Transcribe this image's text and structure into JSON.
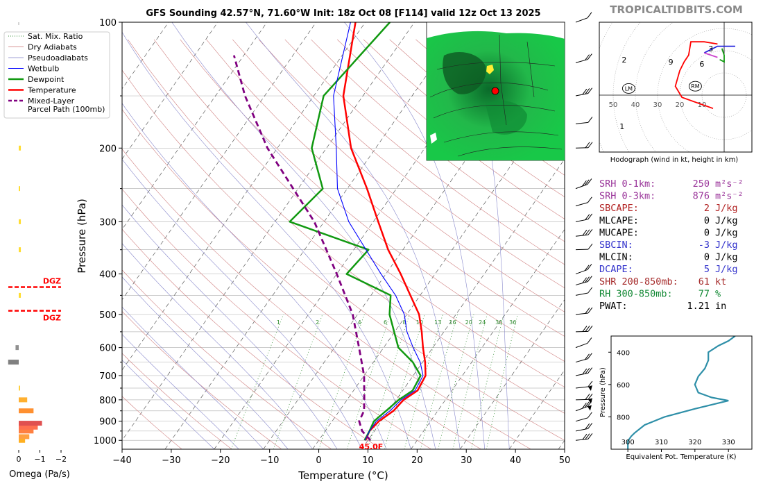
{
  "title": "GFS Sounding 42.57°N, 71.60°W Init: 18z Oct 08 [F114] valid 12z Oct 13 2025",
  "brand": "TROPICALTIDBITS.COM",
  "legend": [
    {
      "label": "Sat. Mix. Ratio",
      "color": "#2e8b2e",
      "style": "dotted"
    },
    {
      "label": "Dry Adiabats",
      "color": "#c87070",
      "style": "solid-thin"
    },
    {
      "label": "Pseudoadiabats",
      "color": "#7f7fc8",
      "style": "solid-thin"
    },
    {
      "label": "Wetbulb",
      "color": "#0000ff",
      "style": "solid"
    },
    {
      "label": "Dewpoint",
      "color": "#119911",
      "style": "solid-thick"
    },
    {
      "label": "Temperature",
      "color": "#ff0000",
      "style": "solid-thick"
    },
    {
      "label": "Mixed-Layer",
      "color": "#800080",
      "style": "dashed"
    },
    {
      "label": "Parcel Path (100mb)",
      "color": "#800080",
      "style": "none"
    }
  ],
  "skewt": {
    "xlabel": "Temperature (°C)",
    "ylabel": "Pressure (hPa)",
    "x_ticks": [
      -40,
      -30,
      -20,
      -10,
      0,
      10,
      20,
      30,
      40,
      50
    ],
    "y_ticks": [
      100,
      200,
      300,
      400,
      500,
      600,
      700,
      800,
      900,
      1000
    ],
    "mix_ratio_labels": [
      "1",
      "2",
      "4",
      "6",
      "8",
      "10",
      "13",
      "16",
      "20",
      "24",
      "30",
      "36"
    ],
    "surface_label": "45.0F"
  },
  "omega": {
    "xlabel": "Omega (Pa/s)",
    "x_ticks": [
      "0",
      "−1",
      "−2"
    ],
    "dgz_label": "DGZ"
  },
  "hodograph": {
    "caption": "Hodograph (wind in kt, height in km)",
    "ring_labels": [
      "50",
      "40",
      "30",
      "20",
      "10"
    ],
    "height_labels": [
      "1",
      "2",
      "3",
      "6",
      "9"
    ],
    "lm": "LM",
    "rm": "RM"
  },
  "indices": [
    {
      "label": "SRH 0-1km:",
      "value": "250",
      "unit": "m²s⁻²",
      "color": "#993399"
    },
    {
      "label": "SRH 0-3km:",
      "value": "876",
      "unit": "m²s⁻²",
      "color": "#993399"
    },
    {
      "label": "SBCAPE:",
      "value": "2",
      "unit": "J/kg",
      "color": "#b22222"
    },
    {
      "label": "MLCAPE:",
      "value": "0",
      "unit": "J/kg",
      "color": "#000000"
    },
    {
      "label": "MUCAPE:",
      "value": "0",
      "unit": "J/kg",
      "color": "#000000"
    },
    {
      "label": "SBCIN:",
      "value": "-3",
      "unit": "J/kg",
      "color": "#3333cc"
    },
    {
      "label": "MLCIN:",
      "value": "0",
      "unit": "J/kg",
      "color": "#000000"
    },
    {
      "label": "DCAPE:",
      "value": "5",
      "unit": "J/kg",
      "color": "#3333cc"
    },
    {
      "label": "SHR 200-850mb:",
      "value": "61",
      "unit": "kt",
      "color": "#a52a2a"
    },
    {
      "label": "RH 300-850mb:",
      "value": "77",
      "unit": "%",
      "color": "#118833"
    },
    {
      "label": "PWAT:",
      "value": "1.21",
      "unit": "in",
      "color": "#000000"
    }
  ],
  "theta_e": {
    "xlabel": "Equivalent Pot. Temperature (K)",
    "ylabel": "Pressure (hPa)",
    "x_ticks": [
      300,
      310,
      320,
      330
    ],
    "y_ticks": [
      400,
      600,
      800
    ]
  },
  "chart_data": [
    {
      "type": "line",
      "name_ref": "skewt",
      "x_range": [
        -40,
        50
      ],
      "y_range_hpa": [
        1050,
        100
      ],
      "y_scale": "log",
      "series": [
        {
          "name": "Temperature",
          "color": "#ff0000",
          "points": [
            [
              1000,
              9.5
            ],
            [
              950,
              9.0
            ],
            [
              900,
              9.5
            ],
            [
              850,
              11
            ],
            [
              800,
              11.5
            ],
            [
              760,
              13
            ],
            [
              700,
              12.5
            ],
            [
              650,
              10.5
            ],
            [
              600,
              8
            ],
            [
              550,
              5.5
            ],
            [
              500,
              2.5
            ],
            [
              450,
              -2
            ],
            [
              400,
              -7
            ],
            [
              350,
              -13
            ],
            [
              300,
              -19
            ],
            [
              250,
              -26
            ],
            [
              200,
              -35
            ],
            [
              150,
              -44
            ],
            [
              100,
              -52
            ]
          ]
        },
        {
          "name": "Dewpoint",
          "color": "#119911",
          "points": [
            [
              1000,
              9.3
            ],
            [
              950,
              9.0
            ],
            [
              900,
              8.5
            ],
            [
              850,
              9.5
            ],
            [
              800,
              10.5
            ],
            [
              760,
              12
            ],
            [
              700,
              11.5
            ],
            [
              650,
              8
            ],
            [
              600,
              3
            ],
            [
              500,
              -3.5
            ],
            [
              450,
              -6
            ],
            [
              400,
              -18
            ],
            [
              350,
              -17
            ],
            [
              300,
              -37
            ],
            [
              250,
              -35
            ],
            [
              200,
              -43
            ],
            [
              150,
              -48
            ],
            [
              100,
              -45
            ]
          ]
        },
        {
          "name": "Wetbulb",
          "color": "#0000ff",
          "points": [
            [
              1000,
              9.4
            ],
            [
              950,
              9.0
            ],
            [
              900,
              9.0
            ],
            [
              850,
              10.3
            ],
            [
              800,
              11
            ],
            [
              760,
              12.5
            ],
            [
              700,
              12
            ],
            [
              650,
              9.5
            ],
            [
              600,
              6
            ],
            [
              550,
              2.5
            ],
            [
              500,
              -0.5
            ],
            [
              450,
              -5
            ],
            [
              400,
              -11
            ],
            [
              350,
              -17.5
            ],
            [
              300,
              -25
            ],
            [
              250,
              -32
            ],
            [
              200,
              -38
            ],
            [
              150,
              -46
            ],
            [
              100,
              -53
            ]
          ]
        },
        {
          "name": "Mixed-Layer Parcel Path (100mb)",
          "color": "#800080",
          "points": [
            [
              1000,
              10.5
            ],
            [
              950,
              7.5
            ],
            [
              900,
              5.5
            ],
            [
              850,
              5
            ],
            [
              800,
              3.5
            ],
            [
              700,
              0
            ],
            [
              600,
              -5
            ],
            [
              500,
              -11
            ],
            [
              400,
              -20
            ],
            [
              300,
              -32
            ],
            [
              250,
              -41
            ],
            [
              200,
              -52
            ],
            [
              150,
              -64
            ],
            [
              120,
              -72
            ]
          ]
        }
      ]
    },
    {
      "type": "bar",
      "name_ref": "omega",
      "x_range": [
        0,
        -2
      ],
      "bars": [
        {
          "p": 1000,
          "v": -0.3,
          "c": "#ffb020"
        },
        {
          "p": 980,
          "v": -0.5,
          "c": "#ffa040"
        },
        {
          "p": 950,
          "v": -0.7,
          "c": "#ff8040"
        },
        {
          "p": 930,
          "v": -0.9,
          "c": "#ff7050"
        },
        {
          "p": 910,
          "v": -1.1,
          "c": "#e05050"
        },
        {
          "p": 850,
          "v": -0.7,
          "c": "#ff9030"
        },
        {
          "p": 800,
          "v": -0.4,
          "c": "#ffb030"
        },
        {
          "p": 750,
          "v": -0.05,
          "c": "#ffd040"
        },
        {
          "p": 650,
          "v": 0.5,
          "c": "#808080"
        },
        {
          "p": 600,
          "v": 0.15,
          "c": "#909090"
        },
        {
          "p": 450,
          "v": -0.1,
          "c": "#ffdd33"
        },
        {
          "p": 350,
          "v": -0.1,
          "c": "#ffdd33"
        },
        {
          "p": 300,
          "v": -0.1,
          "c": "#ffdd33"
        },
        {
          "p": 250,
          "v": -0.05,
          "c": "#ffdd33"
        },
        {
          "p": 200,
          "v": -0.1,
          "c": "#ffdd33"
        }
      ],
      "dgz_pressures": [
        430,
        490
      ]
    },
    {
      "type": "line",
      "name_ref": "hodograph",
      "segments": [
        {
          "color": "#ff0000",
          "points": [
            [
              -5,
              -6
            ],
            [
              -19,
              -1
            ],
            [
              -22,
              4
            ],
            [
              -20,
              11
            ],
            [
              -18,
              15
            ],
            [
              -16,
              18
            ],
            [
              -15,
              24
            ],
            [
              -9,
              24
            ],
            [
              -3,
              23
            ]
          ]
        },
        {
          "color": "#2222dd",
          "points": [
            [
              -9,
              19
            ],
            [
              -3,
              22
            ],
            [
              5,
              22
            ]
          ]
        },
        {
          "color": "#119911",
          "points": [
            [
              -1,
              21
            ],
            [
              0,
              18
            ],
            [
              0,
              15
            ],
            [
              -2,
              16
            ]
          ]
        },
        {
          "color": "#cc44cc",
          "points": [
            [
              -9,
              19
            ],
            [
              -6,
              18
            ],
            [
              -3,
              17
            ]
          ]
        }
      ],
      "range_kt": [
        -55,
        12
      ]
    },
    {
      "type": "line",
      "name_ref": "theta_e",
      "x_range": [
        295,
        337
      ],
      "y_range_hpa": [
        1000,
        300
      ],
      "series": [
        {
          "name": "Theta-E",
          "color": "#2e8fa8",
          "points": [
            [
              1000,
              300
            ],
            [
              950,
              300
            ],
            [
              920,
              301
            ],
            [
              900,
              302
            ],
            [
              850,
              305
            ],
            [
              800,
              311
            ],
            [
              750,
              320
            ],
            [
              700,
              330
            ],
            [
              680,
              325
            ],
            [
              650,
              321
            ],
            [
              600,
              320
            ],
            [
              550,
              321
            ],
            [
              500,
              323
            ],
            [
              450,
              324
            ],
            [
              420,
              324
            ],
            [
              400,
              324
            ],
            [
              360,
              327
            ],
            [
              330,
              330
            ],
            [
              300,
              332
            ]
          ]
        }
      ]
    }
  ]
}
